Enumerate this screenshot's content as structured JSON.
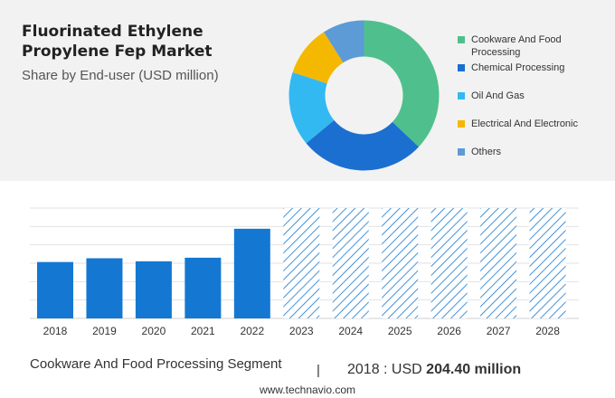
{
  "header": {
    "title": "Fluorinated Ethylene Propylene Fep Market",
    "subtitle": "Share by End-user (USD million)"
  },
  "chart_data": [
    {
      "type": "pie",
      "variant": "donut",
      "title": "Share by End-user (USD million)",
      "legend_position": "right",
      "slices": [
        {
          "label": "Cookware And Food Processing",
          "share": 37,
          "color": "#4fc08d"
        },
        {
          "label": "Chemical Processing",
          "share": 27,
          "color": "#1a6fd0"
        },
        {
          "label": "Oil And Gas",
          "share": 16,
          "color": "#33b9f2"
        },
        {
          "label": "Electrical And Electronic",
          "share": 11,
          "color": "#f5b800"
        },
        {
          "label": "Others",
          "share": 9,
          "color": "#5c9bd6"
        }
      ]
    },
    {
      "type": "bar",
      "categories": [
        "2018",
        "2019",
        "2020",
        "2021",
        "2022",
        "2023",
        "2024",
        "2025",
        "2026",
        "2027",
        "2028"
      ],
      "values": [
        204.4,
        218,
        207,
        220,
        325,
        null,
        null,
        null,
        null,
        null,
        null
      ],
      "forecast_categories": [
        "2023",
        "2024",
        "2025",
        "2026",
        "2027",
        "2028"
      ],
      "ylim": [
        0,
        400
      ],
      "grid": true,
      "bar_color": "#1478d2",
      "forecast_style": "diagonal-hatch",
      "forecast_color": "#1478d2"
    }
  ],
  "footer": {
    "segment": "Cookware And Food Processing Segment",
    "separator": "|",
    "year_label": "2018 : USD",
    "value": "204.40 million",
    "source": "www.technavio.com"
  }
}
